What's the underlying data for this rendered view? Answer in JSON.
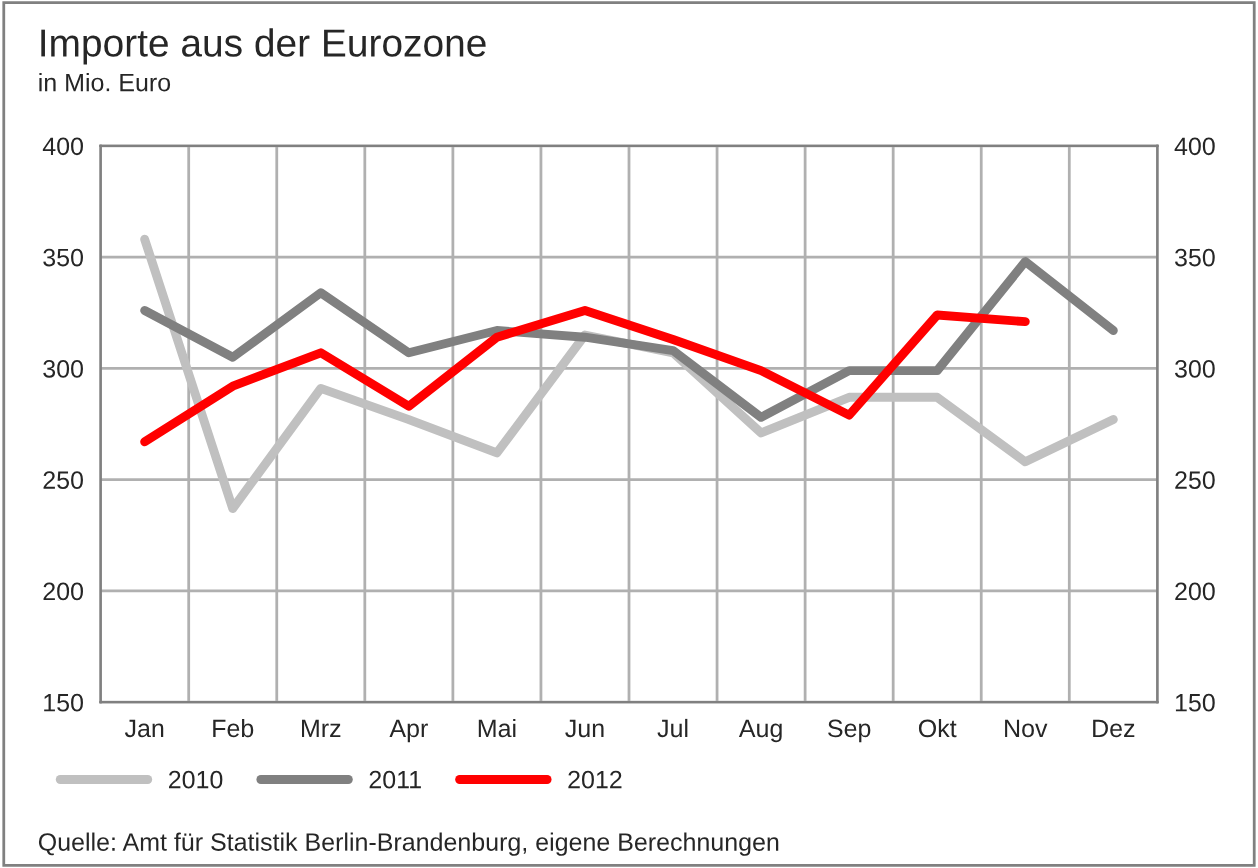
{
  "chart_data": {
    "type": "line",
    "title": "Importe aus der Eurozone",
    "subtitle": "in Mio. Euro",
    "categories": [
      "Jan",
      "Feb",
      "Mrz",
      "Apr",
      "Mai",
      "Jun",
      "Jul",
      "Aug",
      "Sep",
      "Okt",
      "Nov",
      "Dez"
    ],
    "series": [
      {
        "name": "2010",
        "color": "#c0c0c0",
        "values": [
          358,
          237,
          291,
          277,
          262,
          315,
          307,
          271,
          287,
          287,
          258,
          277
        ]
      },
      {
        "name": "2011",
        "color": "#808080",
        "values": [
          326,
          305,
          334,
          307,
          317,
          314,
          308,
          278,
          299,
          299,
          348,
          317
        ]
      },
      {
        "name": "2012",
        "color": "#ff0000",
        "values": [
          267,
          292,
          307,
          283,
          314,
          326,
          313,
          299,
          279,
          324,
          321,
          null
        ]
      }
    ],
    "ylim": [
      150,
      400
    ],
    "yticks": [
      150,
      200,
      250,
      300,
      350,
      400
    ],
    "y2lim": [
      150,
      400
    ],
    "y2ticks": [
      150,
      200,
      250,
      300,
      350,
      400
    ],
    "grid": true,
    "legend": "bottom left",
    "marker": "none",
    "line_style": "solid",
    "annotations": [
      "Quelle: Amt für Statistik Berlin-Brandenburg, eigene Berechnungen"
    ]
  }
}
